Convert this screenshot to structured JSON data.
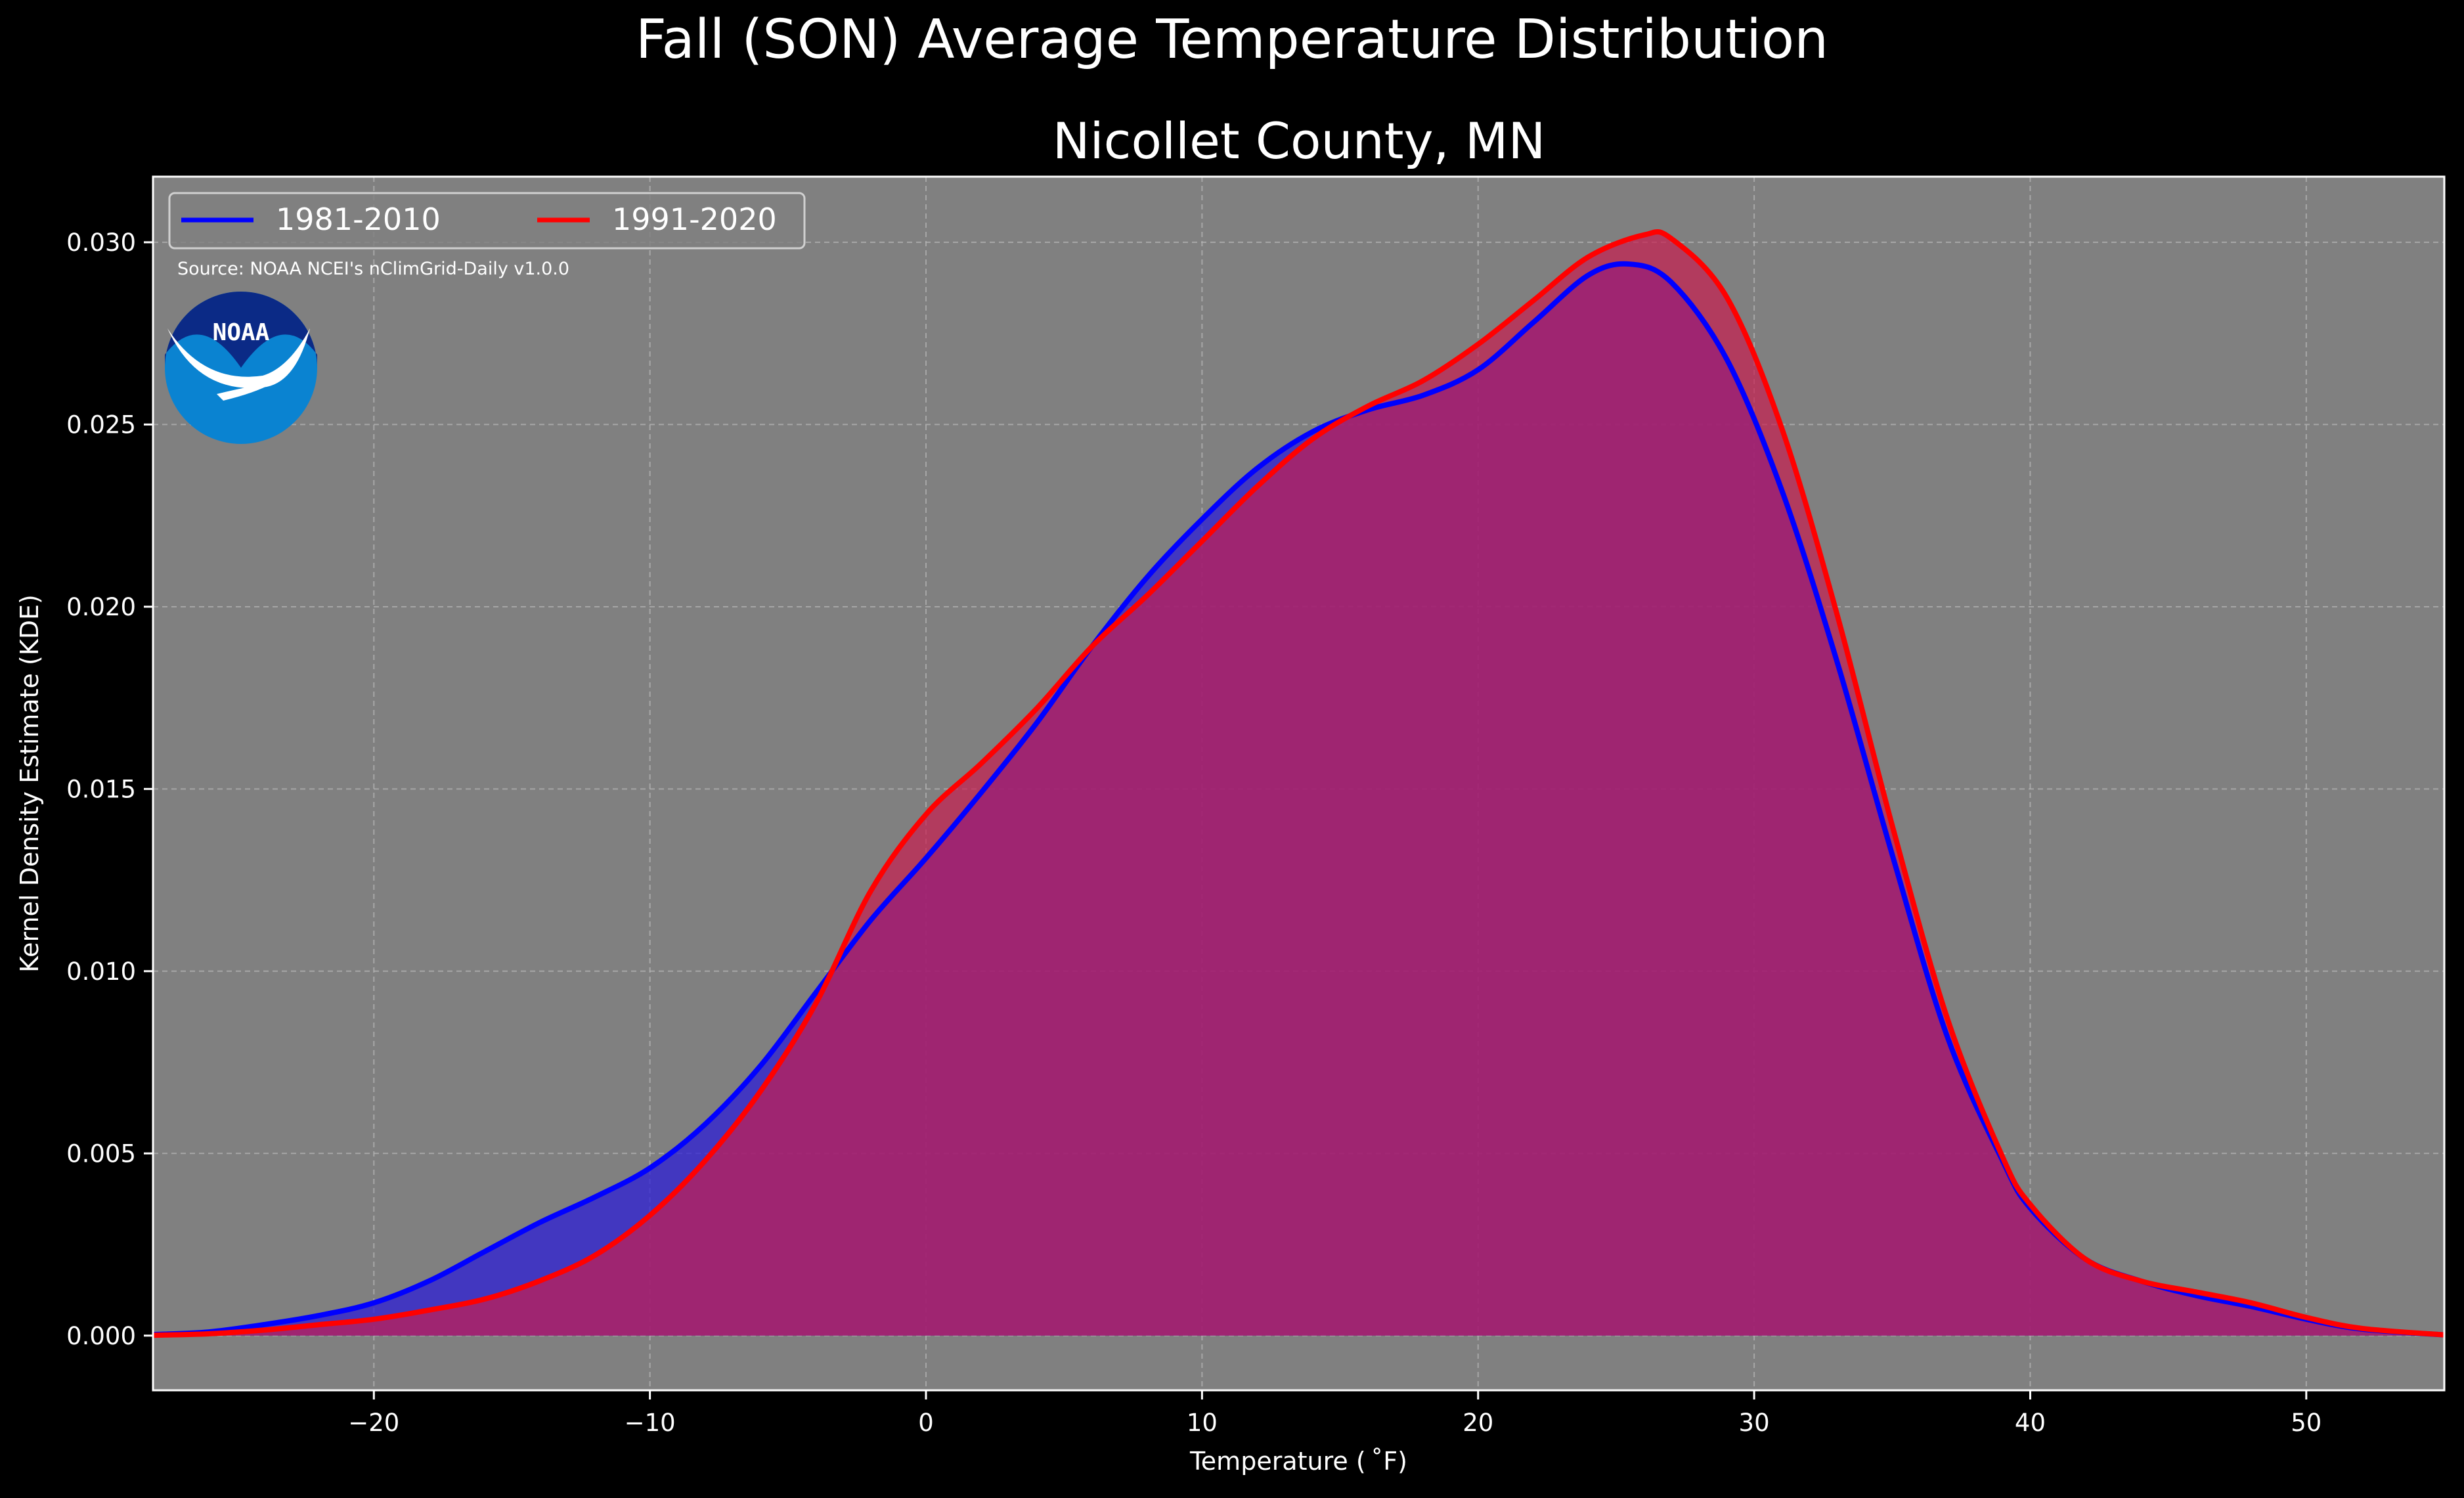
{
  "suptitle": "Fall (SON) Average Temperature Distribution",
  "source_note": "Source: NOAA NCEI's nClimGrid-Daily v1.0.0",
  "logo": {
    "text": "NOAA",
    "icon": "noaa-logo"
  },
  "colors": {
    "background": "#000000",
    "plot_background": "#808080",
    "series_1981": "#0000ff",
    "series_1991": "#ff0000",
    "fill_1981": "#2d1fd6",
    "fill_1991": "#c81e50",
    "grid": "#b8b8b8"
  },
  "chart_data": {
    "type": "area",
    "title": "Nicollet County, MN",
    "xlabel": "Temperature ($^\\circ$F)",
    "xlabel_display": "Temperature ( ˚F)",
    "ylabel": "Kernel Density Estimate (KDE)",
    "xlim": [
      -28,
      55
    ],
    "ylim": [
      -0.0015,
      0.0318
    ],
    "xticks": [
      -20,
      -10,
      0,
      10,
      20,
      30,
      40,
      50
    ],
    "xtick_labels": [
      "−20",
      "−10",
      "0",
      "10",
      "20",
      "30",
      "40",
      "50"
    ],
    "yticks": [
      0.0,
      0.005,
      0.01,
      0.015,
      0.02,
      0.025,
      0.03
    ],
    "ytick_labels": [
      "0.000",
      "0.005",
      "0.010",
      "0.015",
      "0.020",
      "0.025",
      "0.030"
    ],
    "grid": true,
    "legend": {
      "placement": "upper left",
      "columns": 2
    },
    "series": [
      {
        "name": "1981-2010",
        "x": [
          -28,
          -26,
          -24,
          -22,
          -20,
          -18,
          -16,
          -14,
          -12,
          -10,
          -8,
          -6,
          -4,
          -2,
          0,
          2,
          4,
          6,
          8,
          10,
          12,
          14,
          16,
          18,
          20,
          22,
          24,
          25.5,
          27,
          29,
          31,
          33,
          35,
          37,
          39,
          40,
          42,
          44,
          46,
          48,
          50,
          52,
          55
        ],
        "y": [
          3e-05,
          0.0001,
          0.0003,
          0.00055,
          0.0009,
          0.0015,
          0.0023,
          0.0031,
          0.0038,
          0.0046,
          0.0058,
          0.0074,
          0.0094,
          0.0114,
          0.0131,
          0.0149,
          0.0168,
          0.0189,
          0.0208,
          0.0224,
          0.0238,
          0.0248,
          0.0254,
          0.0258,
          0.0265,
          0.0278,
          0.0291,
          0.0294,
          0.0289,
          0.0268,
          0.0232,
          0.0185,
          0.0132,
          0.0082,
          0.0048,
          0.0035,
          0.0021,
          0.0015,
          0.0011,
          0.0008,
          0.00045,
          0.00018,
          2e-05
        ]
      },
      {
        "name": "1991-2020",
        "x": [
          -28,
          -26,
          -24,
          -22,
          -20,
          -18,
          -16,
          -14,
          -12,
          -10,
          -8,
          -6,
          -4,
          -2,
          0,
          2,
          4,
          6,
          8,
          10,
          12,
          14,
          16,
          18,
          20,
          22,
          24,
          26,
          27,
          29,
          31,
          33,
          35,
          37,
          39,
          40,
          42,
          44,
          46,
          48,
          50,
          52,
          55
        ],
        "y": [
          1e-05,
          5e-05,
          0.00015,
          0.0003,
          0.00045,
          0.0007,
          0.001,
          0.0015,
          0.0022,
          0.0033,
          0.0048,
          0.0067,
          0.0091,
          0.0122,
          0.0143,
          0.0157,
          0.0172,
          0.0189,
          0.0203,
          0.0218,
          0.0233,
          0.0246,
          0.0255,
          0.0262,
          0.0272,
          0.0284,
          0.0296,
          0.0302,
          0.0301,
          0.0285,
          0.0249,
          0.0198,
          0.014,
          0.0087,
          0.0049,
          0.0036,
          0.0021,
          0.0015,
          0.0012,
          0.0009,
          0.0005,
          0.0002,
          2e-05
        ]
      }
    ]
  }
}
